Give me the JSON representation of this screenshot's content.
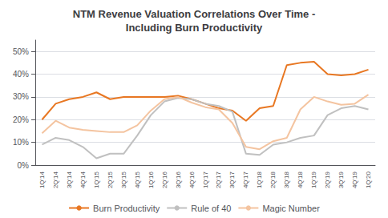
{
  "chart_data": {
    "type": "line",
    "title": "NTM Revenue Valuation Correlations Over Time -\nIncluding Burn Productivity",
    "categories": [
      "1Q'14",
      "2Q'14",
      "3Q'14",
      "4Q'14",
      "1Q'15",
      "2Q'15",
      "3Q'15",
      "4Q'15",
      "1Q'16",
      "2Q'16",
      "3Q'16",
      "4Q'16",
      "1Q'17",
      "2Q'17",
      "3Q'17",
      "4Q'17",
      "1Q'18",
      "2Q'18",
      "3Q'18",
      "4Q'18",
      "1Q'19",
      "2Q'19",
      "3Q'19",
      "4Q'19",
      "1Q'20"
    ],
    "series": [
      {
        "name": "Burn Productivity",
        "color": "#E87722",
        "values": [
          0.2,
          0.27,
          0.29,
          0.3,
          0.32,
          0.29,
          0.3,
          0.3,
          0.3,
          0.3,
          0.305,
          0.29,
          0.27,
          0.25,
          0.24,
          0.195,
          0.25,
          0.26,
          0.44,
          0.45,
          0.455,
          0.4,
          0.395,
          0.4,
          0.42
        ]
      },
      {
        "name": "Rule of 40",
        "color": "#C0C0C0",
        "values": [
          0.09,
          0.12,
          0.11,
          0.08,
          0.03,
          0.05,
          0.05,
          0.13,
          0.22,
          0.28,
          0.295,
          0.29,
          0.27,
          0.26,
          0.235,
          0.05,
          0.045,
          0.09,
          0.1,
          0.12,
          0.13,
          0.22,
          0.25,
          0.26,
          0.245
        ]
      },
      {
        "name": "Magic Number",
        "color": "#F4C4A0",
        "values": [
          0.14,
          0.195,
          0.165,
          0.155,
          0.15,
          0.145,
          0.145,
          0.175,
          0.24,
          0.29,
          0.3,
          0.275,
          0.255,
          0.245,
          0.185,
          0.08,
          0.07,
          0.105,
          0.12,
          0.245,
          0.3,
          0.28,
          0.265,
          0.27,
          0.31
        ]
      }
    ],
    "ylim": [
      0.0,
      0.55
    ],
    "yticks": [
      {
        "value": 0.0,
        "label": "0%"
      },
      {
        "value": 0.1,
        "label": "10%"
      },
      {
        "value": 0.2,
        "label": "20%"
      },
      {
        "value": 0.3,
        "label": "30%"
      },
      {
        "value": 0.4,
        "label": "40%"
      },
      {
        "value": 0.5,
        "label": "50%"
      }
    ],
    "grid": true,
    "legend": "bottom"
  }
}
